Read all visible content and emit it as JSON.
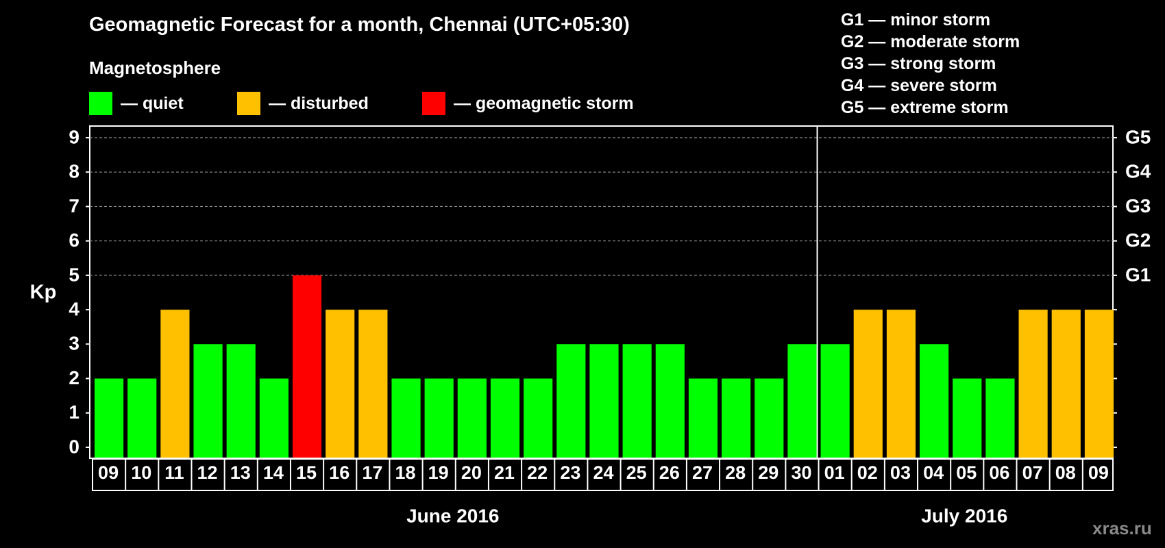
{
  "title": "Geomagnetic Forecast for a month, Chennai (UTC+05:30)",
  "subtitle": "Magnetosphere",
  "legend": [
    {
      "label": "— quiet",
      "color": "#00ff00"
    },
    {
      "label": "— disturbed",
      "color": "#ffc000"
    },
    {
      "label": "— geomagnetic storm",
      "color": "#ff0000"
    }
  ],
  "storm_levels": [
    "G1 — minor storm",
    "G2 — moderate storm",
    "G3 — strong storm",
    "G4 — severe storm",
    "G5 — extreme storm"
  ],
  "watermark": "xras.ru",
  "chart_data": {
    "type": "bar",
    "ylabel": "Kp",
    "ylim": [
      0,
      9
    ],
    "y_ticks": [
      "0",
      "1",
      "2",
      "3",
      "4",
      "5",
      "6",
      "7",
      "8",
      "9"
    ],
    "right_axis_labels": [
      {
        "kp": 5,
        "label": "G1"
      },
      {
        "kp": 6,
        "label": "G2"
      },
      {
        "kp": 7,
        "label": "G3"
      },
      {
        "kp": 8,
        "label": "G4"
      },
      {
        "kp": 9,
        "label": "G5"
      }
    ],
    "grid": "horizontal dashed at Kp 5–9",
    "categories": [
      "09",
      "10",
      "11",
      "12",
      "13",
      "14",
      "15",
      "16",
      "17",
      "18",
      "19",
      "20",
      "21",
      "22",
      "23",
      "24",
      "25",
      "26",
      "27",
      "28",
      "29",
      "30",
      "01",
      "02",
      "03",
      "04",
      "05",
      "06",
      "07",
      "08",
      "09"
    ],
    "values": [
      2,
      2,
      4,
      3,
      3,
      2,
      5,
      4,
      4,
      2,
      2,
      2,
      2,
      2,
      3,
      3,
      3,
      3,
      2,
      2,
      2,
      3,
      3,
      4,
      4,
      3,
      2,
      2,
      4,
      4,
      4
    ],
    "months": [
      {
        "label": "June 2016",
        "first_index": 0,
        "last_index": 21
      },
      {
        "label": "July 2016",
        "first_index": 22,
        "last_index": 30
      }
    ],
    "color_rule": {
      "quiet_max": 3,
      "disturbed": 4,
      "storm_min": 5
    },
    "colors": {
      "quiet": "#00ff00",
      "disturbed": "#ffc000",
      "storm": "#ff0000"
    }
  }
}
